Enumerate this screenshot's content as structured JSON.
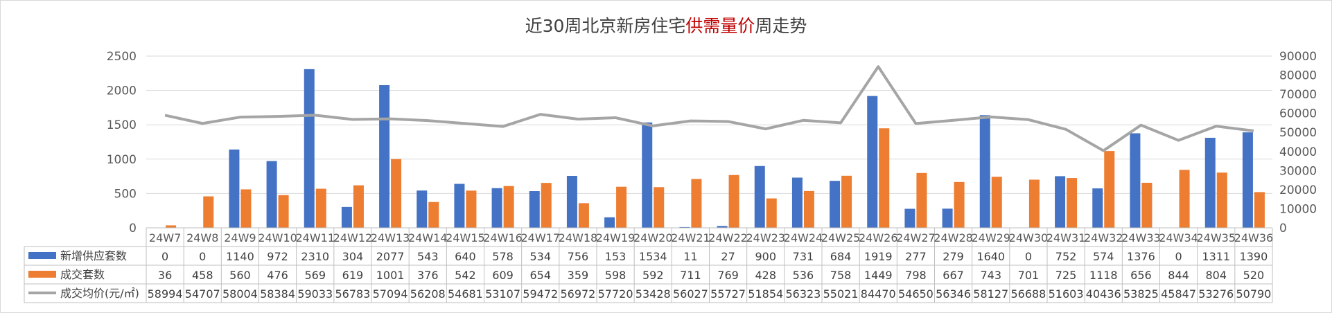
{
  "chart_data": {
    "type": "bar+line",
    "title": {
      "prefix": "近30周北京新房住宅",
      "highlight": "供需量价",
      "suffix": "周走势"
    },
    "categories": [
      "24W7",
      "24W8",
      "24W9",
      "24W10",
      "24W11",
      "24W12",
      "24W13",
      "24W14",
      "24W15",
      "24W16",
      "24W17",
      "24W18",
      "24W19",
      "24W20",
      "24W21",
      "24W22",
      "24W23",
      "24W24",
      "24W25",
      "24W26",
      "24W27",
      "24W28",
      "24W29",
      "24W30",
      "24W31",
      "24W32",
      "24W33",
      "24W34",
      "24W35",
      "24W36"
    ],
    "series": [
      {
        "name": "新增供应套数",
        "type": "bar",
        "axis": "left",
        "color": "#4472C4",
        "values": [
          0,
          0,
          1140,
          972,
          2310,
          304,
          2077,
          543,
          640,
          578,
          534,
          756,
          153,
          1534,
          11,
          27,
          900,
          731,
          684,
          1919,
          277,
          279,
          1640,
          0,
          752,
          574,
          1376,
          0,
          1311,
          1390
        ]
      },
      {
        "name": "成交套数",
        "type": "bar",
        "axis": "left",
        "color": "#ED7D31",
        "values": [
          36,
          458,
          560,
          476,
          569,
          619,
          1001,
          376,
          542,
          609,
          654,
          359,
          598,
          592,
          711,
          769,
          428,
          536,
          758,
          1449,
          798,
          667,
          743,
          701,
          725,
          1118,
          656,
          844,
          804,
          520
        ]
      },
      {
        "name": "成交均价(元/㎡)",
        "type": "line",
        "axis": "right",
        "color": "#A5A5A5",
        "values": [
          58994,
          54707,
          58004,
          58384,
          59033,
          56783,
          57094,
          56208,
          54681,
          53107,
          59472,
          56972,
          57720,
          53428,
          56027,
          55727,
          51854,
          56323,
          55021,
          84470,
          54650,
          56346,
          58127,
          56688,
          51603,
          40436,
          53825,
          45847,
          53276,
          50790
        ]
      }
    ],
    "y_left": {
      "min": 0,
      "max": 2500,
      "ticks": [
        0,
        500,
        1000,
        1500,
        2000,
        2500
      ]
    },
    "y_right": {
      "min": 0,
      "max": 90000,
      "ticks": [
        0,
        10000,
        20000,
        30000,
        40000,
        50000,
        60000,
        70000,
        80000,
        90000
      ]
    },
    "grid": true,
    "legend": "data-table"
  }
}
